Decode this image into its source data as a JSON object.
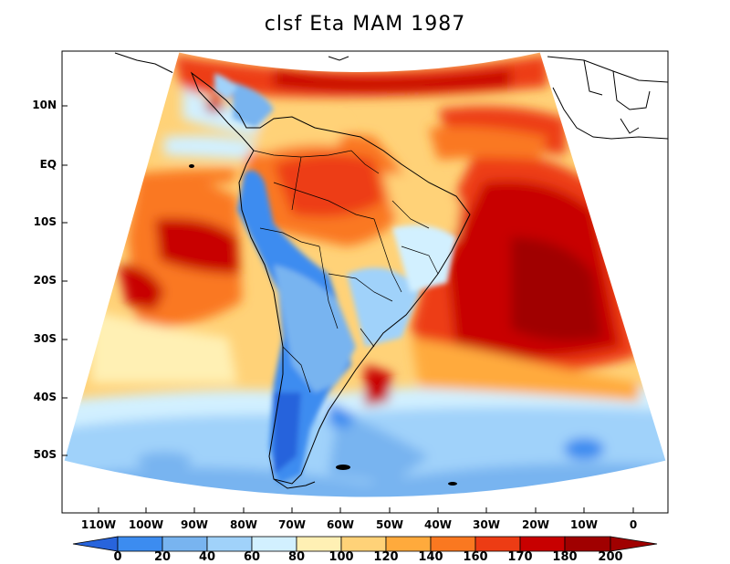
{
  "title": "clsf Eta MAM 1987",
  "map": {
    "projection": "polar stereographic (Eta model domain)",
    "region": "South America",
    "variable": "clsf",
    "season": "MAM",
    "year": "1987"
  },
  "axes": {
    "lat_labels": [
      "10N",
      "EQ",
      "10S",
      "20S",
      "30S",
      "40S",
      "50S"
    ],
    "lon_labels": [
      "110W",
      "100W",
      "90W",
      "80W",
      "70W",
      "60W",
      "50W",
      "40W",
      "30W",
      "20W",
      "10W",
      "0"
    ]
  },
  "colorbar": {
    "levels": [
      "0",
      "20",
      "40",
      "60",
      "80",
      "100",
      "120",
      "140",
      "160",
      "170",
      "180",
      "200"
    ],
    "colors": [
      "#2864dc",
      "#3c8cf0",
      "#78b4f0",
      "#a0d2fa",
      "#d2f0ff",
      "#fff0b4",
      "#ffd278",
      "#ffaa3c",
      "#fa7820",
      "#ed3c14",
      "#c80000",
      "#a00000"
    ]
  }
}
